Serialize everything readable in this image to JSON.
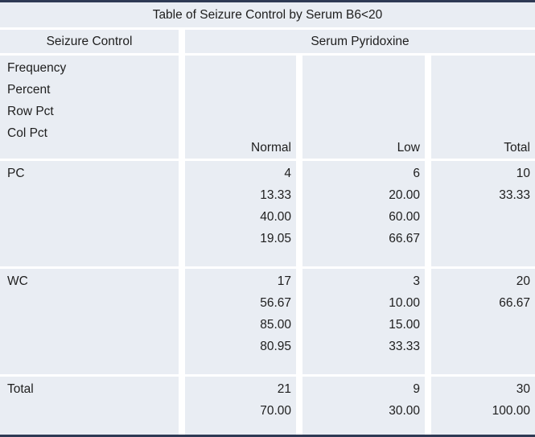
{
  "colors": {
    "cell_background": "#e9edf3",
    "frame_rule": "#2e3a54",
    "text": "#1e1e1e",
    "gutter": "#ffffff"
  },
  "chart_data": {
    "type": "table",
    "title": "Table of Seizure Control by Serum B6<20",
    "row_variable": "Seizure Control",
    "col_variable": "Serum Pyridoxine",
    "statistics": [
      "Frequency",
      "Percent",
      "Row Pct",
      "Col Pct"
    ],
    "columns": [
      "Normal",
      "Low",
      "Total"
    ],
    "rows": [
      {
        "label": "PC",
        "cells": [
          [
            "4",
            "13.33",
            "40.00",
            "19.05"
          ],
          [
            "6",
            "20.00",
            "60.00",
            "66.67"
          ],
          [
            "10",
            "33.33"
          ]
        ]
      },
      {
        "label": "WC",
        "cells": [
          [
            "17",
            "56.67",
            "85.00",
            "80.95"
          ],
          [
            "3",
            "10.00",
            "15.00",
            "33.33"
          ],
          [
            "20",
            "66.67"
          ]
        ]
      },
      {
        "label": "Total",
        "cells": [
          [
            "21",
            "70.00"
          ],
          [
            "9",
            "30.00"
          ],
          [
            "30",
            "100.00"
          ]
        ]
      }
    ]
  }
}
